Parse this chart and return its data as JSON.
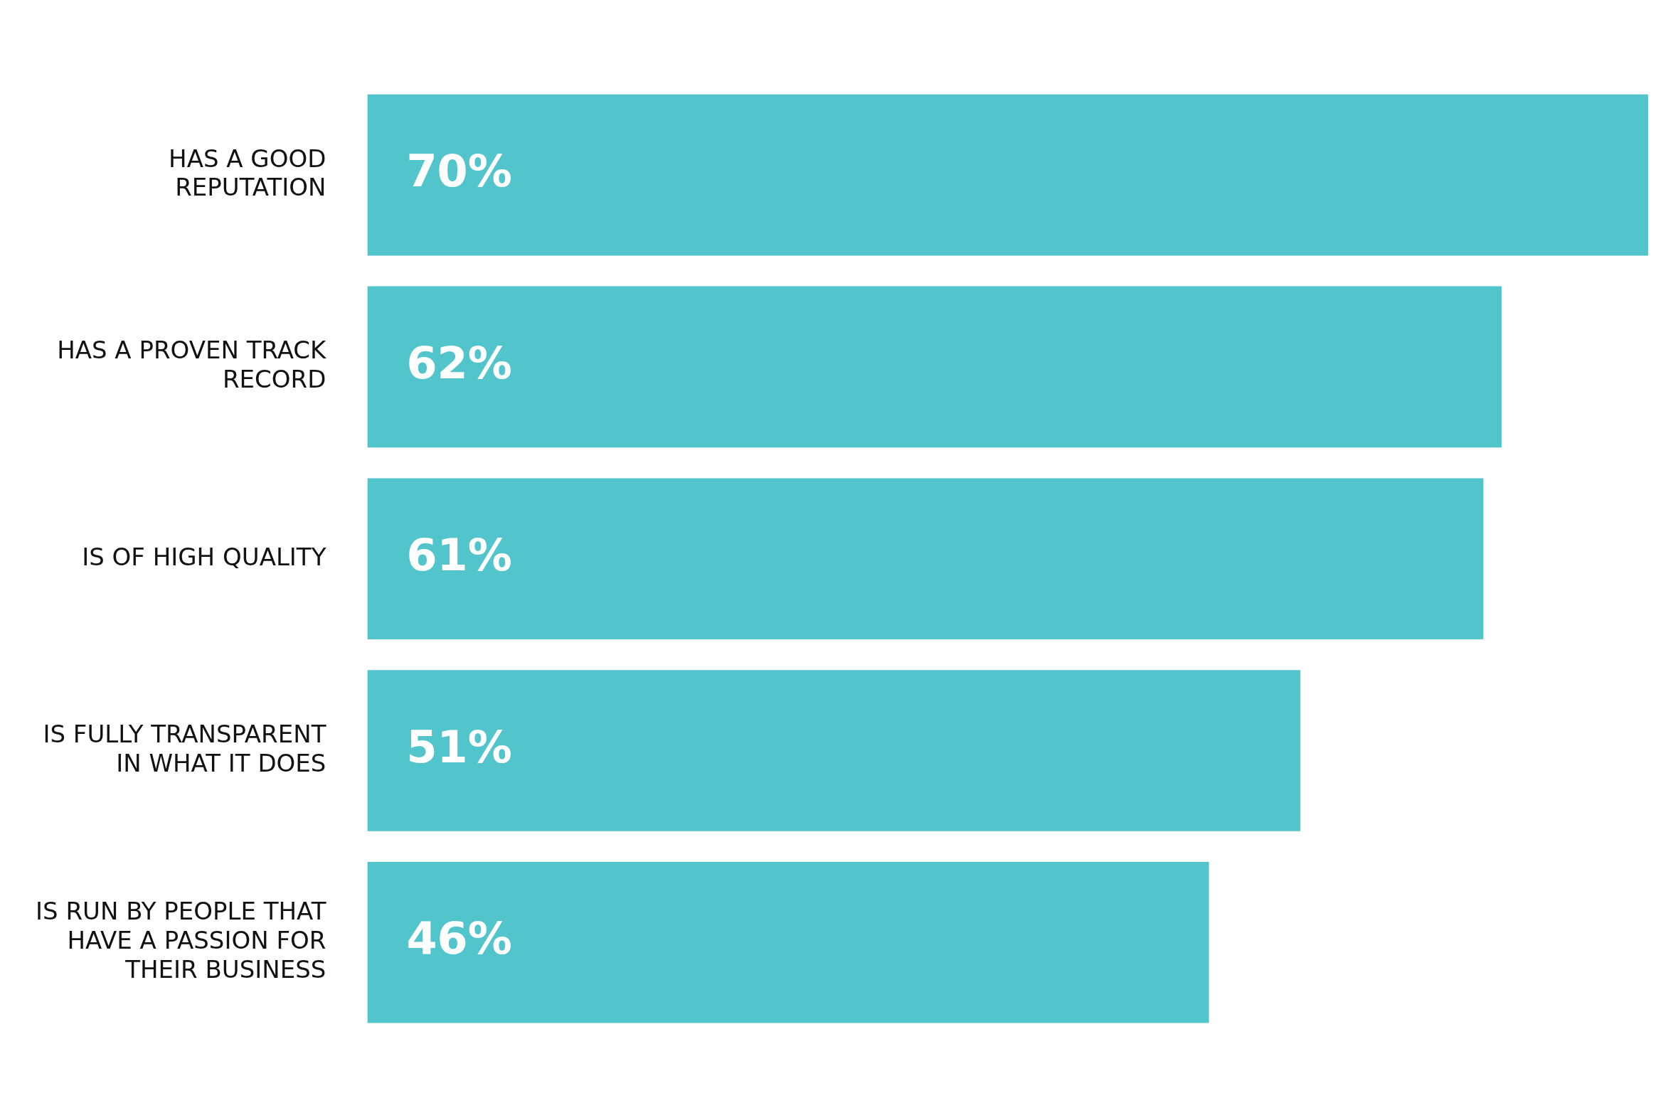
{
  "chart_data": {
    "type": "bar",
    "orientation": "horizontal",
    "categories": [
      "HAS A GOOD REPUTATION",
      "HAS A PROVEN TRACK RECORD",
      "IS OF HIGH QUALITY",
      "IS FULLY TRANSPARENT IN WHAT IT DOES",
      "IS RUN BY PEOPLE THAT HAVE A PASSION FOR THEIR BUSINESS"
    ],
    "values": [
      70,
      62,
      61,
      51,
      46
    ],
    "value_labels": [
      "70%",
      "62%",
      "61%",
      "51%",
      "46%"
    ],
    "color": "#52c4cc",
    "xlim": [
      0,
      70
    ],
    "tick_labels": "y",
    "legend": false
  }
}
